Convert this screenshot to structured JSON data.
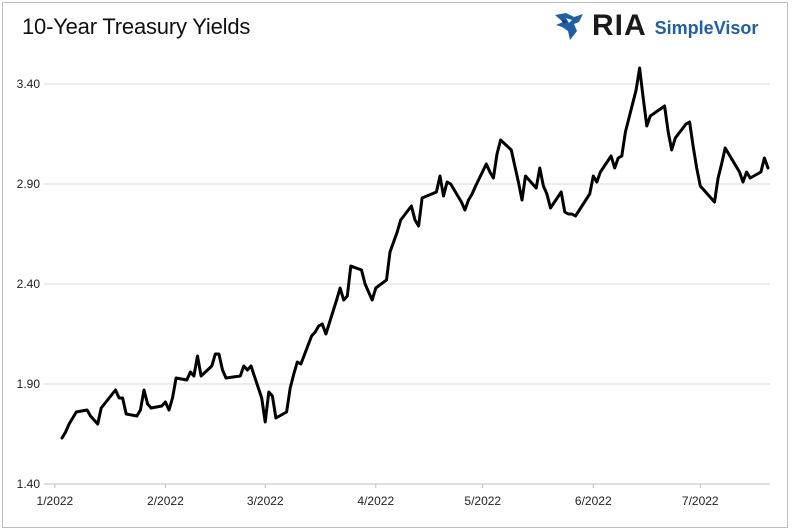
{
  "header": {
    "title": "10-Year Treasury Yields",
    "logo_ria": "RIA",
    "logo_simplevisor": "SimpleVisor",
    "brand_color": "#1f5fa8"
  },
  "chart_data": {
    "type": "line",
    "title": "10-Year Treasury Yields",
    "xlabel": "",
    "ylabel": "",
    "ylim": [
      1.4,
      3.4
    ],
    "yticks": [
      "1.40",
      "1.90",
      "2.40",
      "2.90",
      "3.40"
    ],
    "xticks": [
      "1/2022",
      "2/2022",
      "3/2022",
      "4/2022",
      "5/2022",
      "6/2022",
      "7/2022"
    ],
    "grid": "horizontal",
    "line_color": "#000000",
    "series": [
      {
        "values": [
          [
            "2022-01-03",
            1.63
          ],
          [
            "2022-01-04",
            1.66
          ],
          [
            "2022-01-05",
            1.7
          ],
          [
            "2022-01-06",
            1.73
          ],
          [
            "2022-01-07",
            1.76
          ],
          [
            "2022-01-10",
            1.77
          ],
          [
            "2022-01-11",
            1.74
          ],
          [
            "2022-01-12",
            1.72
          ],
          [
            "2022-01-13",
            1.7
          ],
          [
            "2022-01-14",
            1.78
          ],
          [
            "2022-01-18",
            1.87
          ],
          [
            "2022-01-19",
            1.83
          ],
          [
            "2022-01-20",
            1.83
          ],
          [
            "2022-01-21",
            1.75
          ],
          [
            "2022-01-24",
            1.74
          ],
          [
            "2022-01-25",
            1.77
          ],
          [
            "2022-01-26",
            1.87
          ],
          [
            "2022-01-27",
            1.8
          ],
          [
            "2022-01-28",
            1.78
          ],
          [
            "2022-01-31",
            1.79
          ],
          [
            "2022-02-01",
            1.81
          ],
          [
            "2022-02-02",
            1.77
          ],
          [
            "2022-02-03",
            1.83
          ],
          [
            "2022-02-04",
            1.93
          ],
          [
            "2022-02-07",
            1.92
          ],
          [
            "2022-02-08",
            1.96
          ],
          [
            "2022-02-09",
            1.94
          ],
          [
            "2022-02-10",
            2.04
          ],
          [
            "2022-02-11",
            1.94
          ],
          [
            "2022-02-14",
            1.99
          ],
          [
            "2022-02-15",
            2.05
          ],
          [
            "2022-02-16",
            2.05
          ],
          [
            "2022-02-17",
            1.97
          ],
          [
            "2022-02-18",
            1.93
          ],
          [
            "2022-02-22",
            1.94
          ],
          [
            "2022-02-23",
            1.99
          ],
          [
            "2022-02-24",
            1.97
          ],
          [
            "2022-02-25",
            1.99
          ],
          [
            "2022-02-28",
            1.83
          ],
          [
            "2022-03-01",
            1.71
          ],
          [
            "2022-03-02",
            1.86
          ],
          [
            "2022-03-03",
            1.84
          ],
          [
            "2022-03-04",
            1.73
          ],
          [
            "2022-03-07",
            1.76
          ],
          [
            "2022-03-08",
            1.88
          ],
          [
            "2022-03-09",
            1.95
          ],
          [
            "2022-03-10",
            2.01
          ],
          [
            "2022-03-11",
            2.0
          ],
          [
            "2022-03-14",
            2.14
          ],
          [
            "2022-03-15",
            2.16
          ],
          [
            "2022-03-16",
            2.19
          ],
          [
            "2022-03-17",
            2.2
          ],
          [
            "2022-03-18",
            2.15
          ],
          [
            "2022-03-21",
            2.32
          ],
          [
            "2022-03-22",
            2.38
          ],
          [
            "2022-03-23",
            2.32
          ],
          [
            "2022-03-24",
            2.34
          ],
          [
            "2022-03-25",
            2.49
          ],
          [
            "2022-03-28",
            2.47
          ],
          [
            "2022-03-29",
            2.4
          ],
          [
            "2022-03-30",
            2.36
          ],
          [
            "2022-03-31",
            2.32
          ],
          [
            "2022-04-01",
            2.38
          ],
          [
            "2022-04-04",
            2.42
          ],
          [
            "2022-04-05",
            2.56
          ],
          [
            "2022-04-06",
            2.61
          ],
          [
            "2022-04-07",
            2.66
          ],
          [
            "2022-04-08",
            2.72
          ],
          [
            "2022-04-11",
            2.79
          ],
          [
            "2022-04-12",
            2.72
          ],
          [
            "2022-04-13",
            2.69
          ],
          [
            "2022-04-14",
            2.83
          ],
          [
            "2022-04-18",
            2.86
          ],
          [
            "2022-04-19",
            2.94
          ],
          [
            "2022-04-20",
            2.84
          ],
          [
            "2022-04-21",
            2.91
          ],
          [
            "2022-04-22",
            2.9
          ],
          [
            "2022-04-25",
            2.81
          ],
          [
            "2022-04-26",
            2.77
          ],
          [
            "2022-04-27",
            2.82
          ],
          [
            "2022-04-28",
            2.85
          ],
          [
            "2022-04-29",
            2.89
          ],
          [
            "2022-05-02",
            3.0
          ],
          [
            "2022-05-03",
            2.96
          ],
          [
            "2022-05-04",
            2.93
          ],
          [
            "2022-05-05",
            3.05
          ],
          [
            "2022-05-06",
            3.12
          ],
          [
            "2022-05-09",
            3.07
          ],
          [
            "2022-05-10",
            2.99
          ],
          [
            "2022-05-11",
            2.91
          ],
          [
            "2022-05-12",
            2.82
          ],
          [
            "2022-05-13",
            2.94
          ],
          [
            "2022-05-16",
            2.88
          ],
          [
            "2022-05-17",
            2.98
          ],
          [
            "2022-05-18",
            2.89
          ],
          [
            "2022-05-19",
            2.85
          ],
          [
            "2022-05-20",
            2.78
          ],
          [
            "2022-05-23",
            2.86
          ],
          [
            "2022-05-24",
            2.76
          ],
          [
            "2022-05-25",
            2.75
          ],
          [
            "2022-05-26",
            2.75
          ],
          [
            "2022-05-27",
            2.74
          ],
          [
            "2022-05-31",
            2.85
          ],
          [
            "2022-06-01",
            2.94
          ],
          [
            "2022-06-02",
            2.91
          ],
          [
            "2022-06-03",
            2.96
          ],
          [
            "2022-06-06",
            3.04
          ],
          [
            "2022-06-07",
            2.98
          ],
          [
            "2022-06-08",
            3.03
          ],
          [
            "2022-06-09",
            3.04
          ],
          [
            "2022-06-10",
            3.16
          ],
          [
            "2022-06-13",
            3.37
          ],
          [
            "2022-06-14",
            3.48
          ],
          [
            "2022-06-15",
            3.33
          ],
          [
            "2022-06-16",
            3.19
          ],
          [
            "2022-06-17",
            3.24
          ],
          [
            "2022-06-21",
            3.29
          ],
          [
            "2022-06-22",
            3.16
          ],
          [
            "2022-06-23",
            3.07
          ],
          [
            "2022-06-24",
            3.13
          ],
          [
            "2022-06-27",
            3.2
          ],
          [
            "2022-06-28",
            3.21
          ],
          [
            "2022-06-29",
            3.09
          ],
          [
            "2022-06-30",
            2.98
          ],
          [
            "2022-07-01",
            2.89
          ],
          [
            "2022-07-05",
            2.81
          ],
          [
            "2022-07-06",
            2.93
          ],
          [
            "2022-07-07",
            3.0
          ],
          [
            "2022-07-08",
            3.08
          ],
          [
            "2022-07-11",
            2.99
          ],
          [
            "2022-07-12",
            2.96
          ],
          [
            "2022-07-13",
            2.91
          ],
          [
            "2022-07-14",
            2.96
          ],
          [
            "2022-07-15",
            2.93
          ],
          [
            "2022-07-18",
            2.96
          ],
          [
            "2022-07-19",
            3.03
          ],
          [
            "2022-07-20",
            2.98
          ]
        ]
      }
    ]
  }
}
